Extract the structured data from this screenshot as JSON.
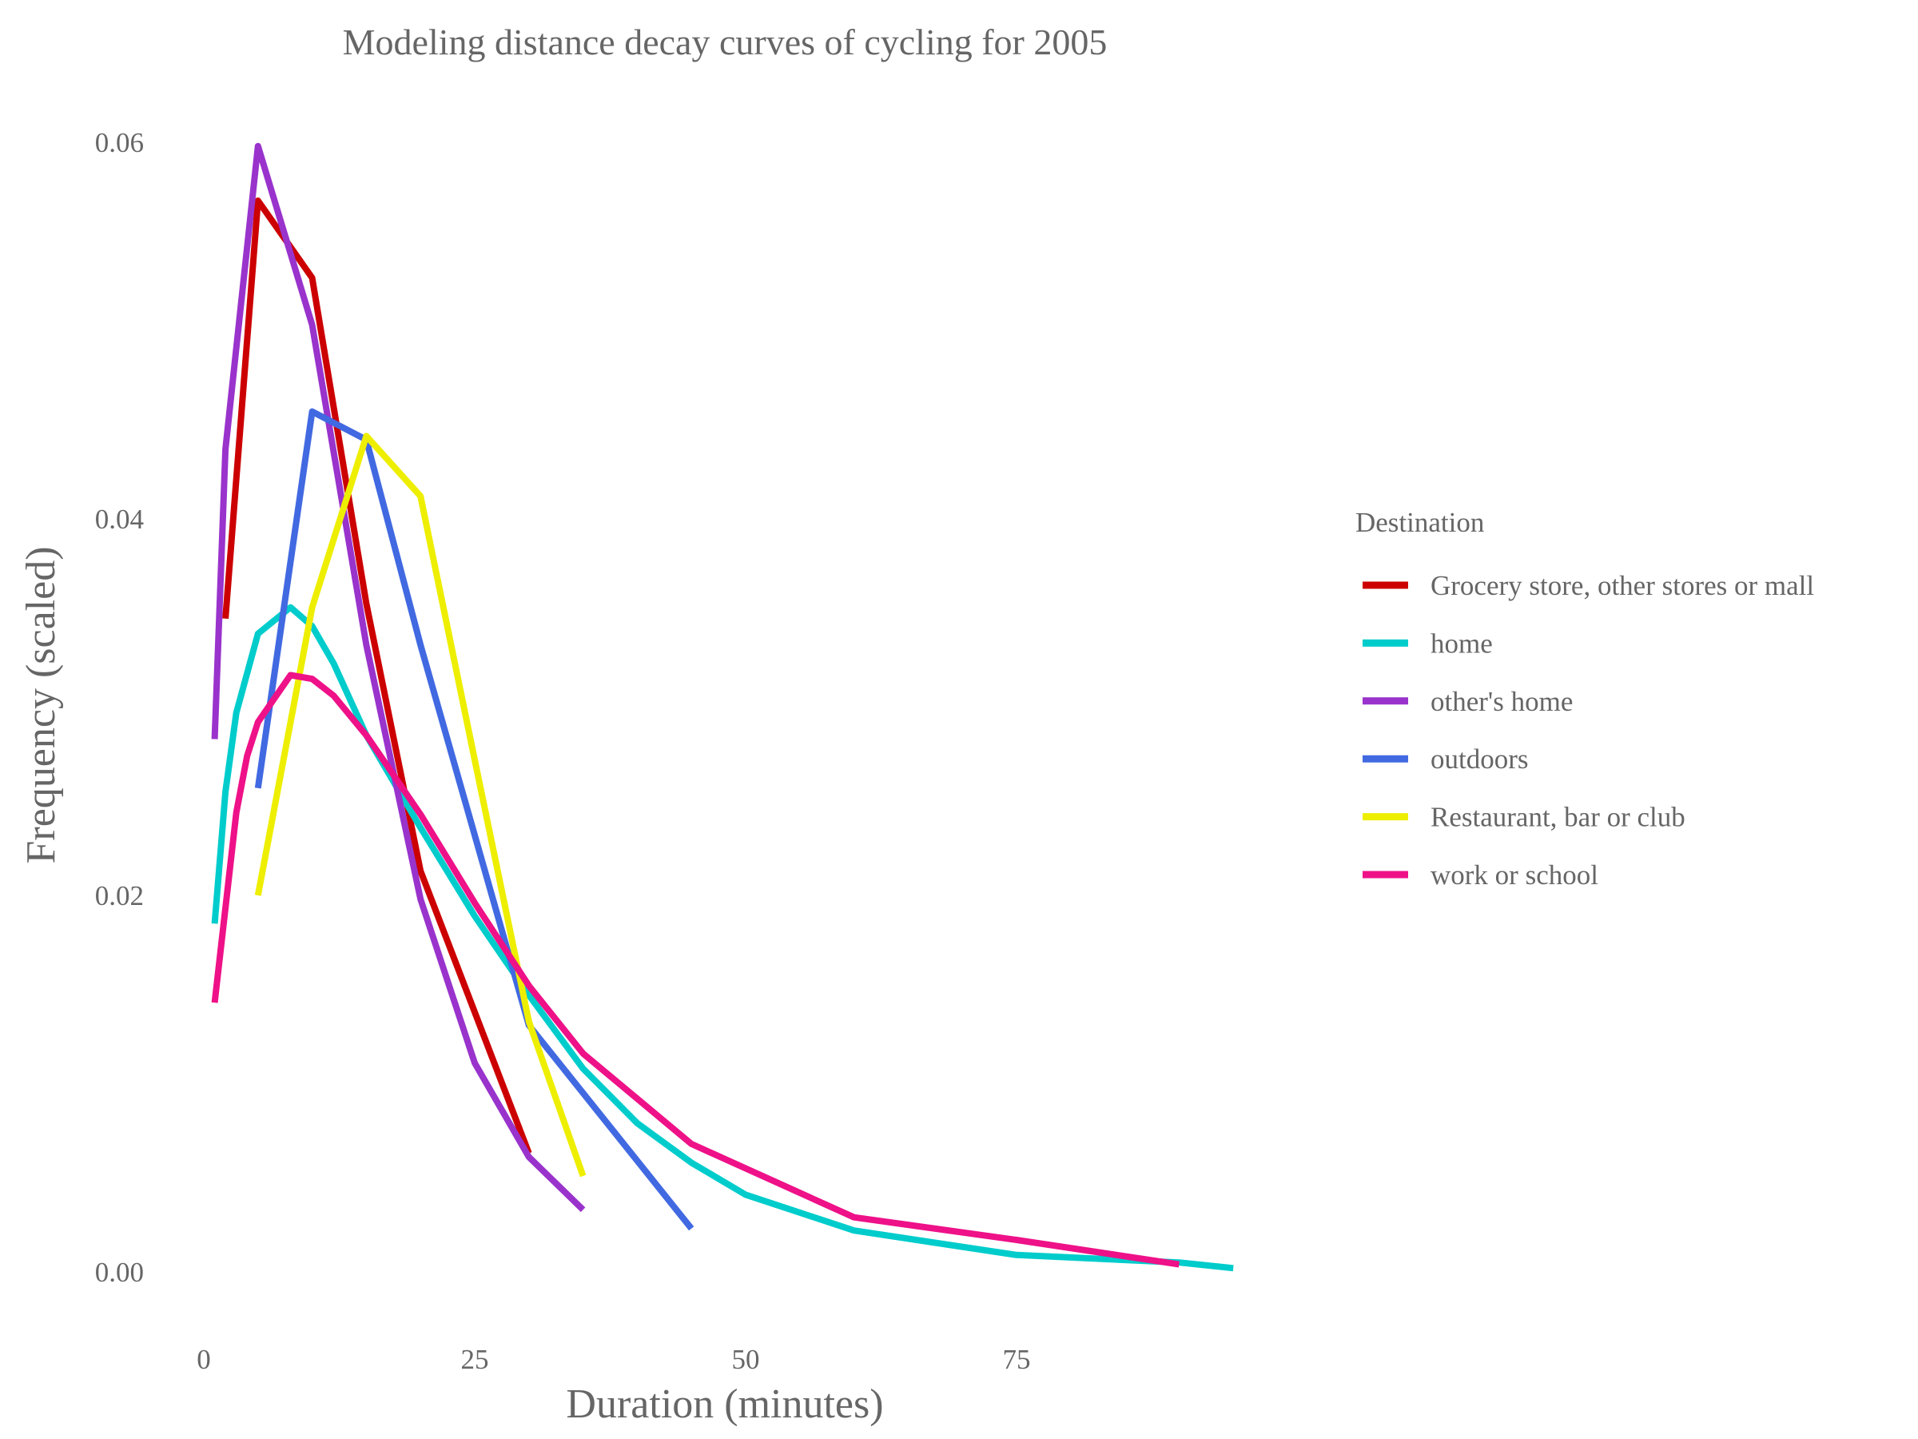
{
  "chart_data": {
    "type": "line",
    "title": "Modeling distance decay curves of cycling for 2005",
    "xlabel": "Duration (minutes)",
    "ylabel": "Frequency (scaled)",
    "xlim": [
      -2,
      96
    ],
    "ylim": [
      -0.0025,
      0.0625
    ],
    "x_ticks": [
      0,
      25,
      50,
      75
    ],
    "x_tick_labels": [
      "0",
      "25",
      "50",
      "75"
    ],
    "y_ticks": [
      0.0,
      0.02,
      0.04,
      0.06
    ],
    "y_tick_labels": [
      "0.00",
      "0.02",
      "0.04",
      "0.06"
    ],
    "grid": false,
    "legend": {
      "title": "Destination",
      "position": "right"
    },
    "series": [
      {
        "name": "Grocery store, other stores or mall",
        "color": "#cc0000",
        "x": [
          2,
          5,
          10,
          15,
          20,
          30
        ],
        "y": [
          0.0347,
          0.0569,
          0.0528,
          0.0355,
          0.0213,
          0.0063
        ]
      },
      {
        "name": "home",
        "color": "#00cccc",
        "x": [
          1,
          2,
          3,
          5,
          8,
          10,
          12,
          15,
          20,
          25,
          30,
          35,
          40,
          45,
          50,
          60,
          75,
          90,
          95
        ],
        "y": [
          0.0185,
          0.0255,
          0.0297,
          0.0339,
          0.0353,
          0.0343,
          0.0323,
          0.0285,
          0.0236,
          0.0189,
          0.0147,
          0.0108,
          0.0079,
          0.0058,
          0.0041,
          0.0022,
          0.0009,
          0.0005,
          0.0002
        ]
      },
      {
        "name": "other's home",
        "color": "#9933cc",
        "x": [
          1,
          2,
          5,
          10,
          15,
          20,
          25,
          30,
          35
        ],
        "y": [
          0.0283,
          0.0437,
          0.0598,
          0.0503,
          0.0333,
          0.0198,
          0.0111,
          0.0061,
          0.0033
        ]
      },
      {
        "name": "outdoors",
        "color": "#4169e1",
        "x": [
          5,
          10,
          15,
          20,
          30,
          45
        ],
        "y": [
          0.0257,
          0.0457,
          0.0442,
          0.0333,
          0.0131,
          0.0023
        ]
      },
      {
        "name": "Restaurant, bar or club",
        "color": "#eeee00",
        "x": [
          5,
          10,
          15,
          20,
          25,
          30,
          35
        ],
        "y": [
          0.02,
          0.0353,
          0.0444,
          0.0412,
          0.0272,
          0.0133,
          0.0051
        ]
      },
      {
        "name": "work or school",
        "color": "#ee1188",
        "x": [
          1,
          3,
          4,
          5,
          8,
          10,
          12,
          15,
          20,
          25,
          30,
          35,
          45,
          60,
          75,
          90
        ],
        "y": [
          0.0143,
          0.0244,
          0.0274,
          0.0292,
          0.0317,
          0.0315,
          0.0306,
          0.0285,
          0.0243,
          0.0196,
          0.0152,
          0.0116,
          0.0068,
          0.0029,
          0.0017,
          0.0004
        ]
      }
    ]
  }
}
